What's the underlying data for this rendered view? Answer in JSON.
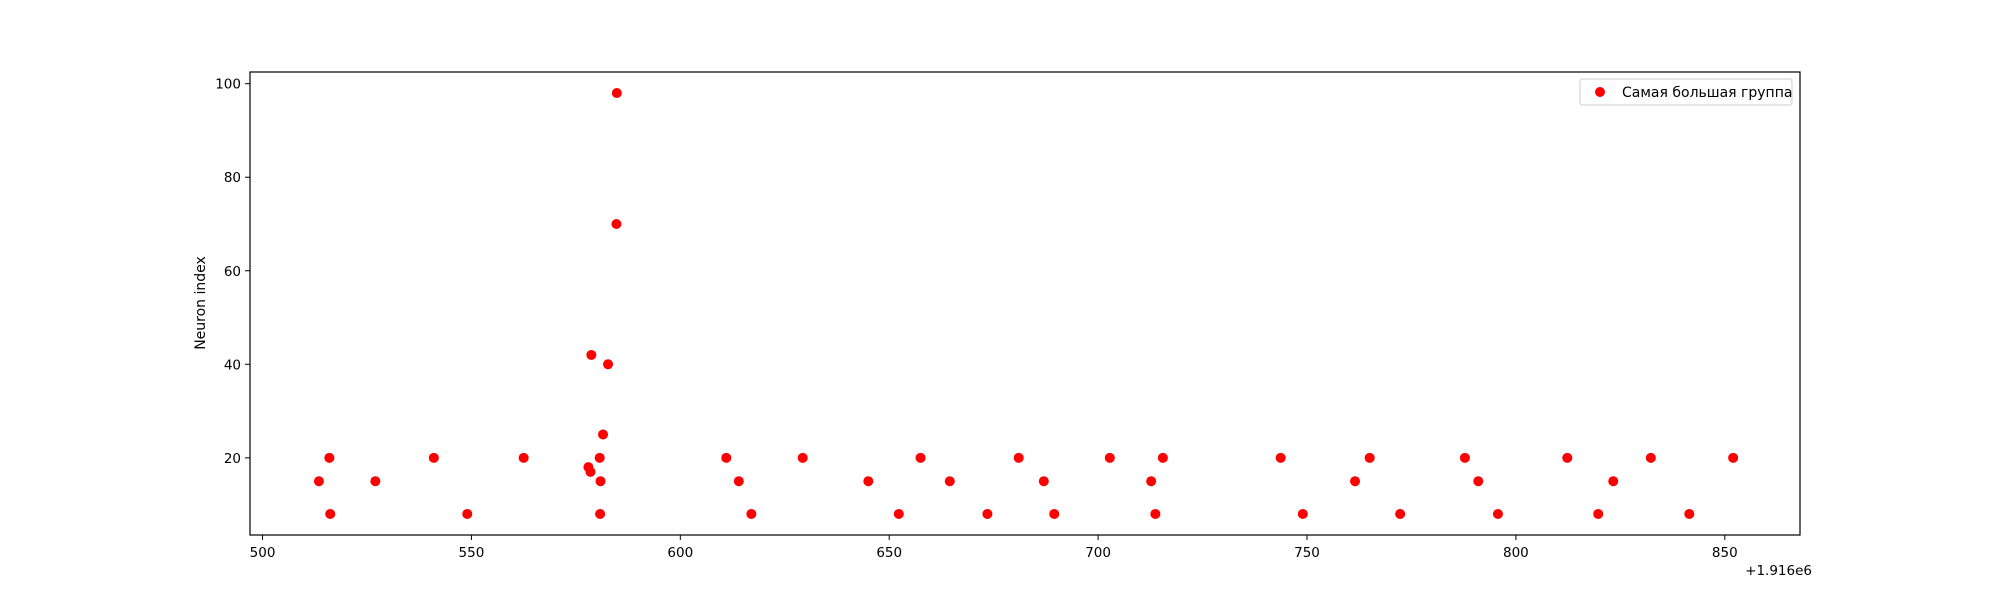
{
  "chart_data": {
    "type": "scatter",
    "title": "",
    "xlabel": "",
    "ylabel": "Neuron index",
    "x_offset_label": "+1.916e6",
    "xlim": [
      497,
      868
    ],
    "ylim": [
      3.5,
      102.5
    ],
    "xticks": [
      500,
      550,
      600,
      650,
      700,
      750,
      800,
      850
    ],
    "yticks": [
      20,
      40,
      60,
      80,
      100
    ],
    "grid": false,
    "legend_position": "top-right",
    "series": [
      {
        "name": "Самая большая группа",
        "color": "#ff0000",
        "points": [
          [
            513.5,
            15
          ],
          [
            516,
            20
          ],
          [
            516.2,
            8
          ],
          [
            527,
            15
          ],
          [
            541,
            20
          ],
          [
            549,
            8
          ],
          [
            562.5,
            20
          ],
          [
            578,
            18
          ],
          [
            578.5,
            17
          ],
          [
            578.7,
            42
          ],
          [
            580.7,
            20
          ],
          [
            580.8,
            8
          ],
          [
            580.9,
            15
          ],
          [
            581.5,
            25
          ],
          [
            582.7,
            40
          ],
          [
            584.7,
            70
          ],
          [
            584.8,
            98
          ],
          [
            611,
            20
          ],
          [
            614,
            15
          ],
          [
            617,
            8
          ],
          [
            629.3,
            20
          ],
          [
            645,
            15
          ],
          [
            652.3,
            8
          ],
          [
            657.5,
            20
          ],
          [
            664.5,
            15
          ],
          [
            673.5,
            8
          ],
          [
            681,
            20
          ],
          [
            687,
            15
          ],
          [
            689.5,
            8
          ],
          [
            702.8,
            20
          ],
          [
            712.7,
            15
          ],
          [
            713.7,
            8
          ],
          [
            715.5,
            20
          ],
          [
            743.7,
            20
          ],
          [
            749,
            8
          ],
          [
            761.5,
            15
          ],
          [
            765,
            20
          ],
          [
            772.3,
            8
          ],
          [
            787.8,
            20
          ],
          [
            791,
            15
          ],
          [
            795.7,
            8
          ],
          [
            812.3,
            20
          ],
          [
            819.7,
            8
          ],
          [
            823.3,
            15
          ],
          [
            832.3,
            20
          ],
          [
            841.5,
            8
          ],
          [
            852,
            20
          ]
        ]
      }
    ]
  }
}
